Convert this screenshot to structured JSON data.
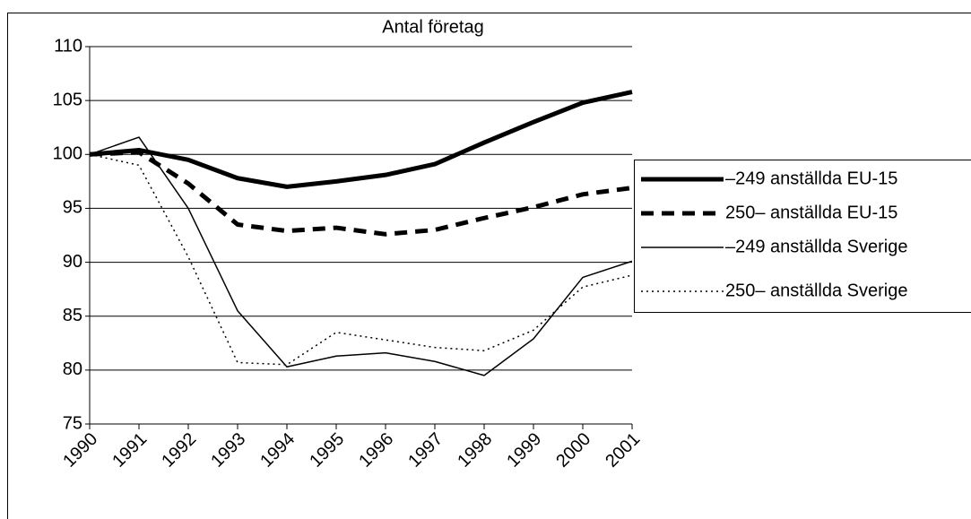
{
  "chart_data": {
    "type": "line",
    "title": "Antal företag",
    "categories": [
      "1990",
      "1991",
      "1992",
      "1993",
      "1994",
      "1995",
      "1996",
      "1997",
      "1998",
      "1999",
      "2000",
      "2001"
    ],
    "series": [
      {
        "name": "–249 anställda EU-15",
        "color": "#000000",
        "style": "solid",
        "weight": "thick",
        "values": [
          100,
          100.4,
          99.5,
          97.8,
          97.0,
          97.5,
          98.1,
          99.1,
          101.1,
          103.0,
          104.8,
          105.8
        ]
      },
      {
        "name": "250– anställda EU-15",
        "color": "#000000",
        "style": "dashed",
        "weight": "thick",
        "values": [
          100,
          100.2,
          97.3,
          93.5,
          92.9,
          93.2,
          92.6,
          93.0,
          94.1,
          95.1,
          96.3,
          96.9
        ]
      },
      {
        "name": "–249 anställda Sverige",
        "color": "#000000",
        "style": "solid",
        "weight": "thin",
        "values": [
          100,
          101.6,
          95.0,
          85.5,
          80.3,
          81.3,
          81.6,
          80.8,
          79.5,
          82.9,
          88.6,
          90.1
        ]
      },
      {
        "name": "250– anställda Sverige",
        "color": "#000000",
        "style": "dotted",
        "weight": "thin",
        "values": [
          100,
          99.0,
          90.5,
          80.7,
          80.5,
          83.5,
          82.8,
          82.1,
          81.8,
          83.7,
          87.7,
          88.8
        ]
      }
    ],
    "ylim": [
      75,
      110
    ],
    "yticks": [
      75,
      80,
      85,
      90,
      95,
      100,
      105,
      110
    ],
    "grid": true,
    "legend": "right"
  }
}
